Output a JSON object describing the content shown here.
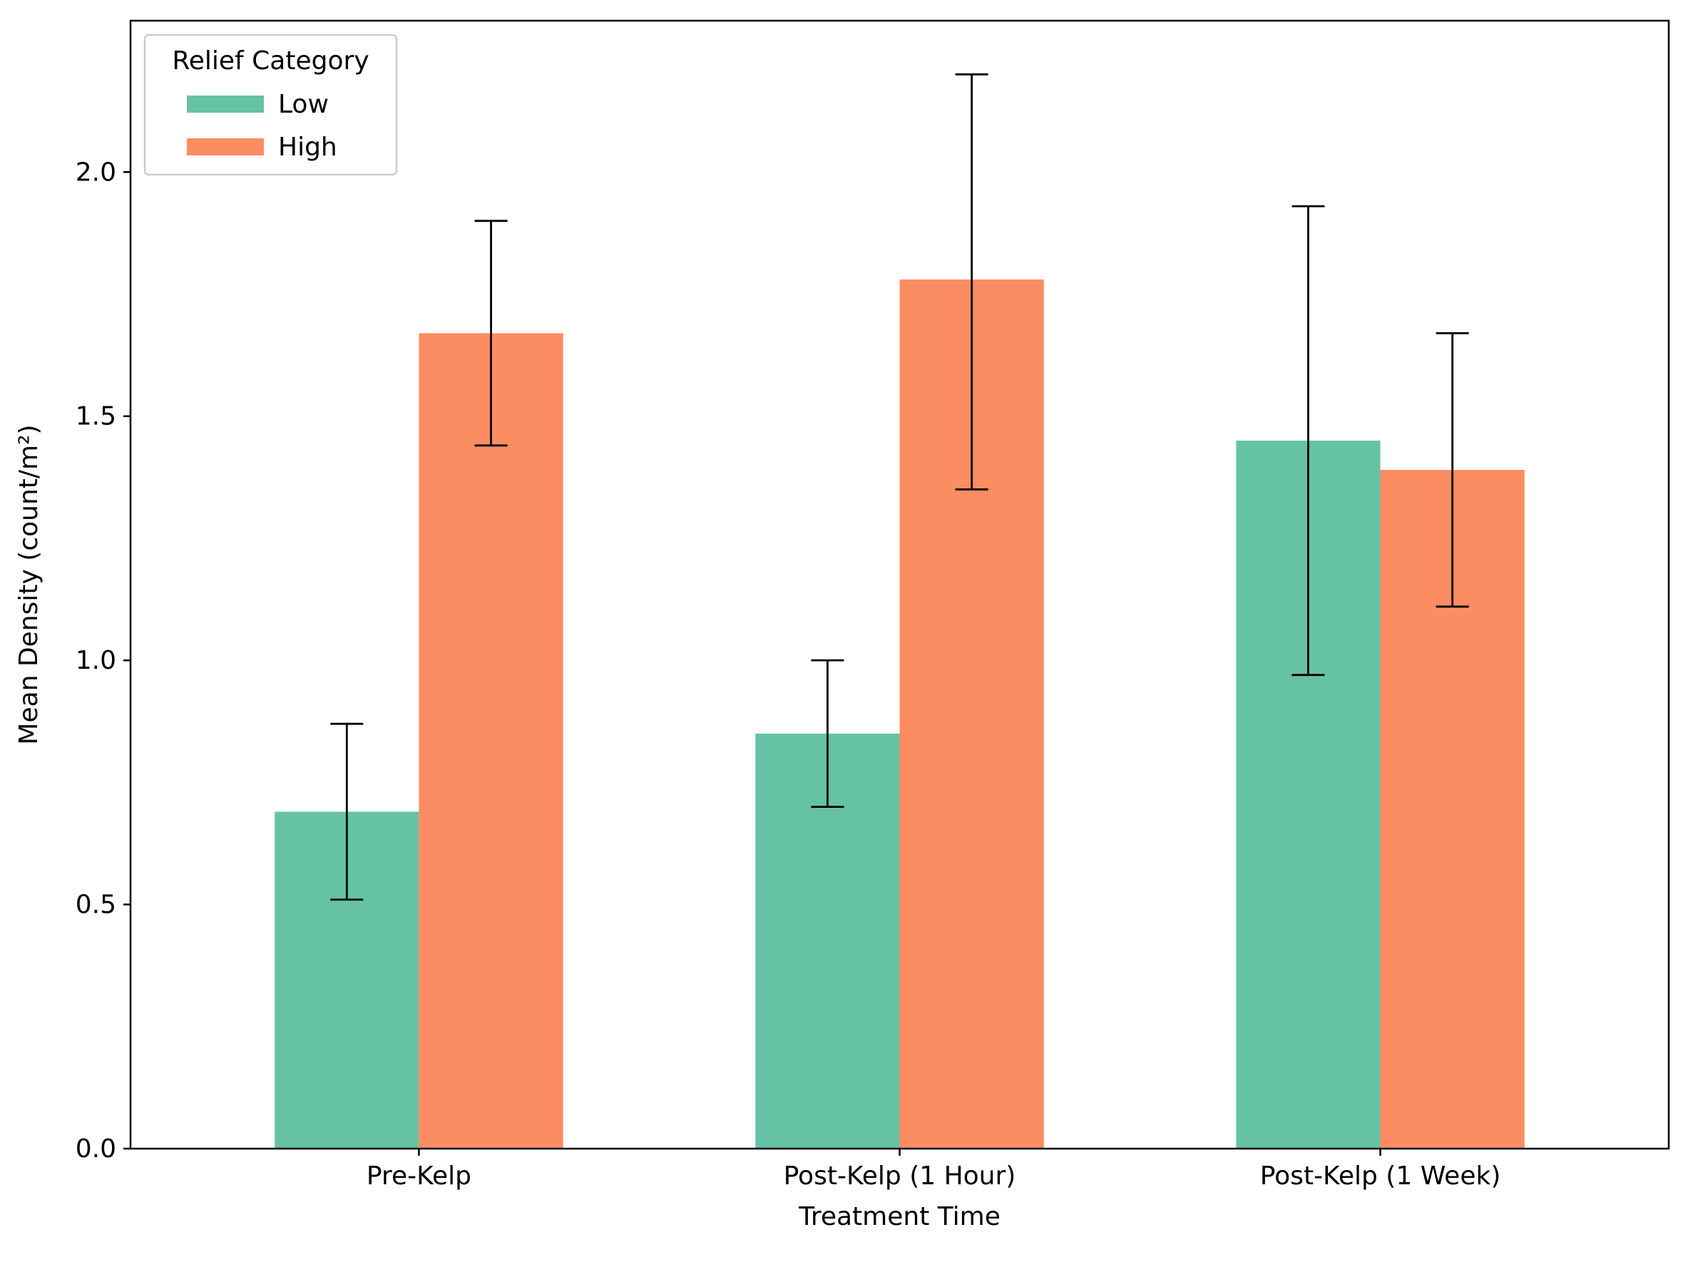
{
  "chart_data": {
    "type": "bar",
    "title": "",
    "xlabel": "Treatment Time",
    "ylabel": "Mean Density (count/m²)",
    "categories": [
      "Pre-Kelp",
      "Post-Kelp (1 Hour)",
      "Post-Kelp (1 Week)"
    ],
    "series": [
      {
        "name": "Low",
        "color": "#66c2a5",
        "values": [
          0.69,
          0.85,
          1.45
        ],
        "error_lower": [
          0.51,
          0.7,
          0.97
        ],
        "error_upper": [
          0.87,
          1.0,
          1.93
        ]
      },
      {
        "name": "High",
        "color": "#fc8d62",
        "values": [
          1.67,
          1.78,
          1.39
        ],
        "error_lower": [
          1.44,
          1.35,
          1.11
        ],
        "error_upper": [
          1.9,
          2.2,
          1.67
        ]
      }
    ],
    "ylim": [
      0,
      2.31
    ],
    "yticks": [
      "0.0",
      "0.5",
      "1.0",
      "1.5",
      "2.0"
    ],
    "legend": {
      "title": "Relief Category",
      "placement": "top-left"
    },
    "grid": false
  }
}
